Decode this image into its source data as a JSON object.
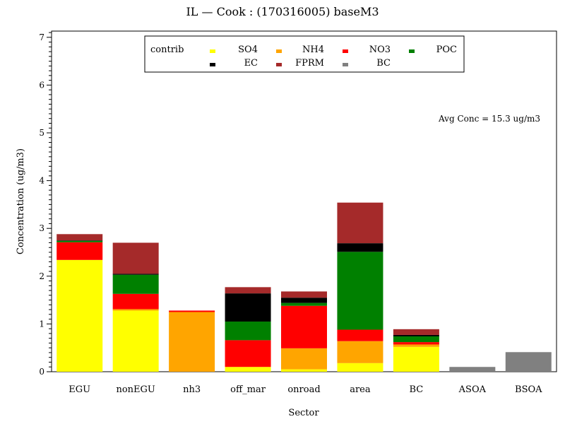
{
  "chart_data": {
    "type": "bar",
    "stacked": true,
    "title": "IL  —  Cook : (170316005)  baseM3",
    "xlabel": "Sector",
    "ylabel": "Concentration (ug/m3)",
    "ylim": [
      0,
      7.1
    ],
    "yticks": [
      "0",
      "1",
      "2",
      "3",
      "4",
      "5",
      "6",
      "7"
    ],
    "annotation": "Avg Conc =  15.3 ug/m3",
    "legend_title": "contrib",
    "legend_position": "top-center",
    "grid": false,
    "categories": [
      "EGU",
      "nonEGU",
      "nh3",
      "off_mar",
      "onroad",
      "area",
      "BC",
      "ASOA",
      "BSOA"
    ],
    "series": [
      {
        "name": "SO4",
        "color": "#FFFF00",
        "values": [
          2.34,
          1.28,
          0.0,
          0.1,
          0.05,
          0.18,
          0.52,
          0.0,
          0.0
        ]
      },
      {
        "name": "NH4",
        "color": "#FFA500",
        "values": [
          0.0,
          0.03,
          1.25,
          0.0,
          0.44,
          0.46,
          0.05,
          0.0,
          0.0
        ]
      },
      {
        "name": "NO3",
        "color": "#FF0000",
        "values": [
          0.37,
          0.32,
          0.03,
          0.56,
          0.89,
          0.24,
          0.05,
          0.0,
          0.0
        ]
      },
      {
        "name": "POC",
        "color": "#008000",
        "values": [
          0.03,
          0.4,
          0.0,
          0.39,
          0.06,
          1.63,
          0.12,
          0.0,
          0.0
        ]
      },
      {
        "name": "EC",
        "color": "#000000",
        "values": [
          0.01,
          0.02,
          0.0,
          0.59,
          0.11,
          0.18,
          0.03,
          0.0,
          0.0
        ]
      },
      {
        "name": "FPRM",
        "color": "#A52A2A",
        "values": [
          0.13,
          0.65,
          0.0,
          0.13,
          0.13,
          0.85,
          0.12,
          0.0,
          0.0
        ]
      },
      {
        "name": "BC",
        "color": "#808080",
        "values": [
          0.0,
          0.0,
          0.0,
          0.0,
          0.0,
          0.0,
          0.0,
          0.1,
          0.41
        ]
      }
    ]
  }
}
